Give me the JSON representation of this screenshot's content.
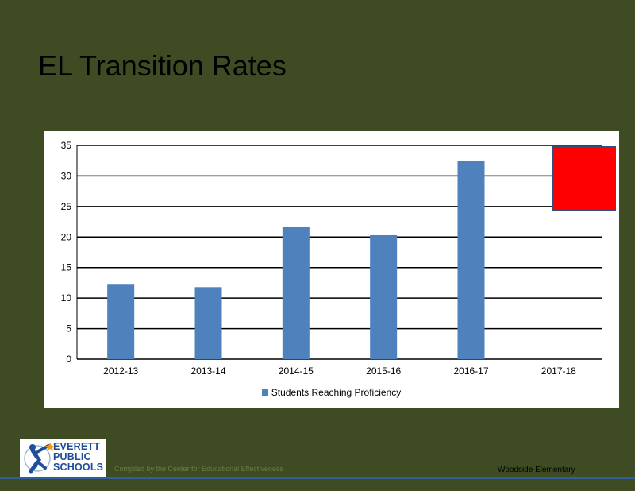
{
  "slide": {
    "title": "EL Transition Rates",
    "credit": "Compiled by the Center for Educational Effectiveness",
    "school": "Woodside Elementary"
  },
  "logo": {
    "line1": "EVERETT",
    "line2": "PUBLIC",
    "line3": "SCHOOLS"
  },
  "chart_data": {
    "type": "bar",
    "categories": [
      "2012-13",
      "2013-14",
      "2014-15",
      "2015-16",
      "2016-17",
      "2017-18"
    ],
    "series": [
      {
        "name": "Students Reaching Proficiency",
        "values": [
          12.2,
          11.8,
          21.6,
          20.3,
          32.4,
          null
        ],
        "color": "#4f81bd"
      }
    ],
    "ylim": [
      0,
      35
    ],
    "yticks": [
      0,
      5,
      10,
      15,
      20,
      25,
      30,
      35
    ],
    "grid": true,
    "legend_position": "bottom",
    "target_marker": {
      "category": "2017-18",
      "range": [
        24.5,
        35
      ],
      "color": "#ff0000"
    }
  }
}
